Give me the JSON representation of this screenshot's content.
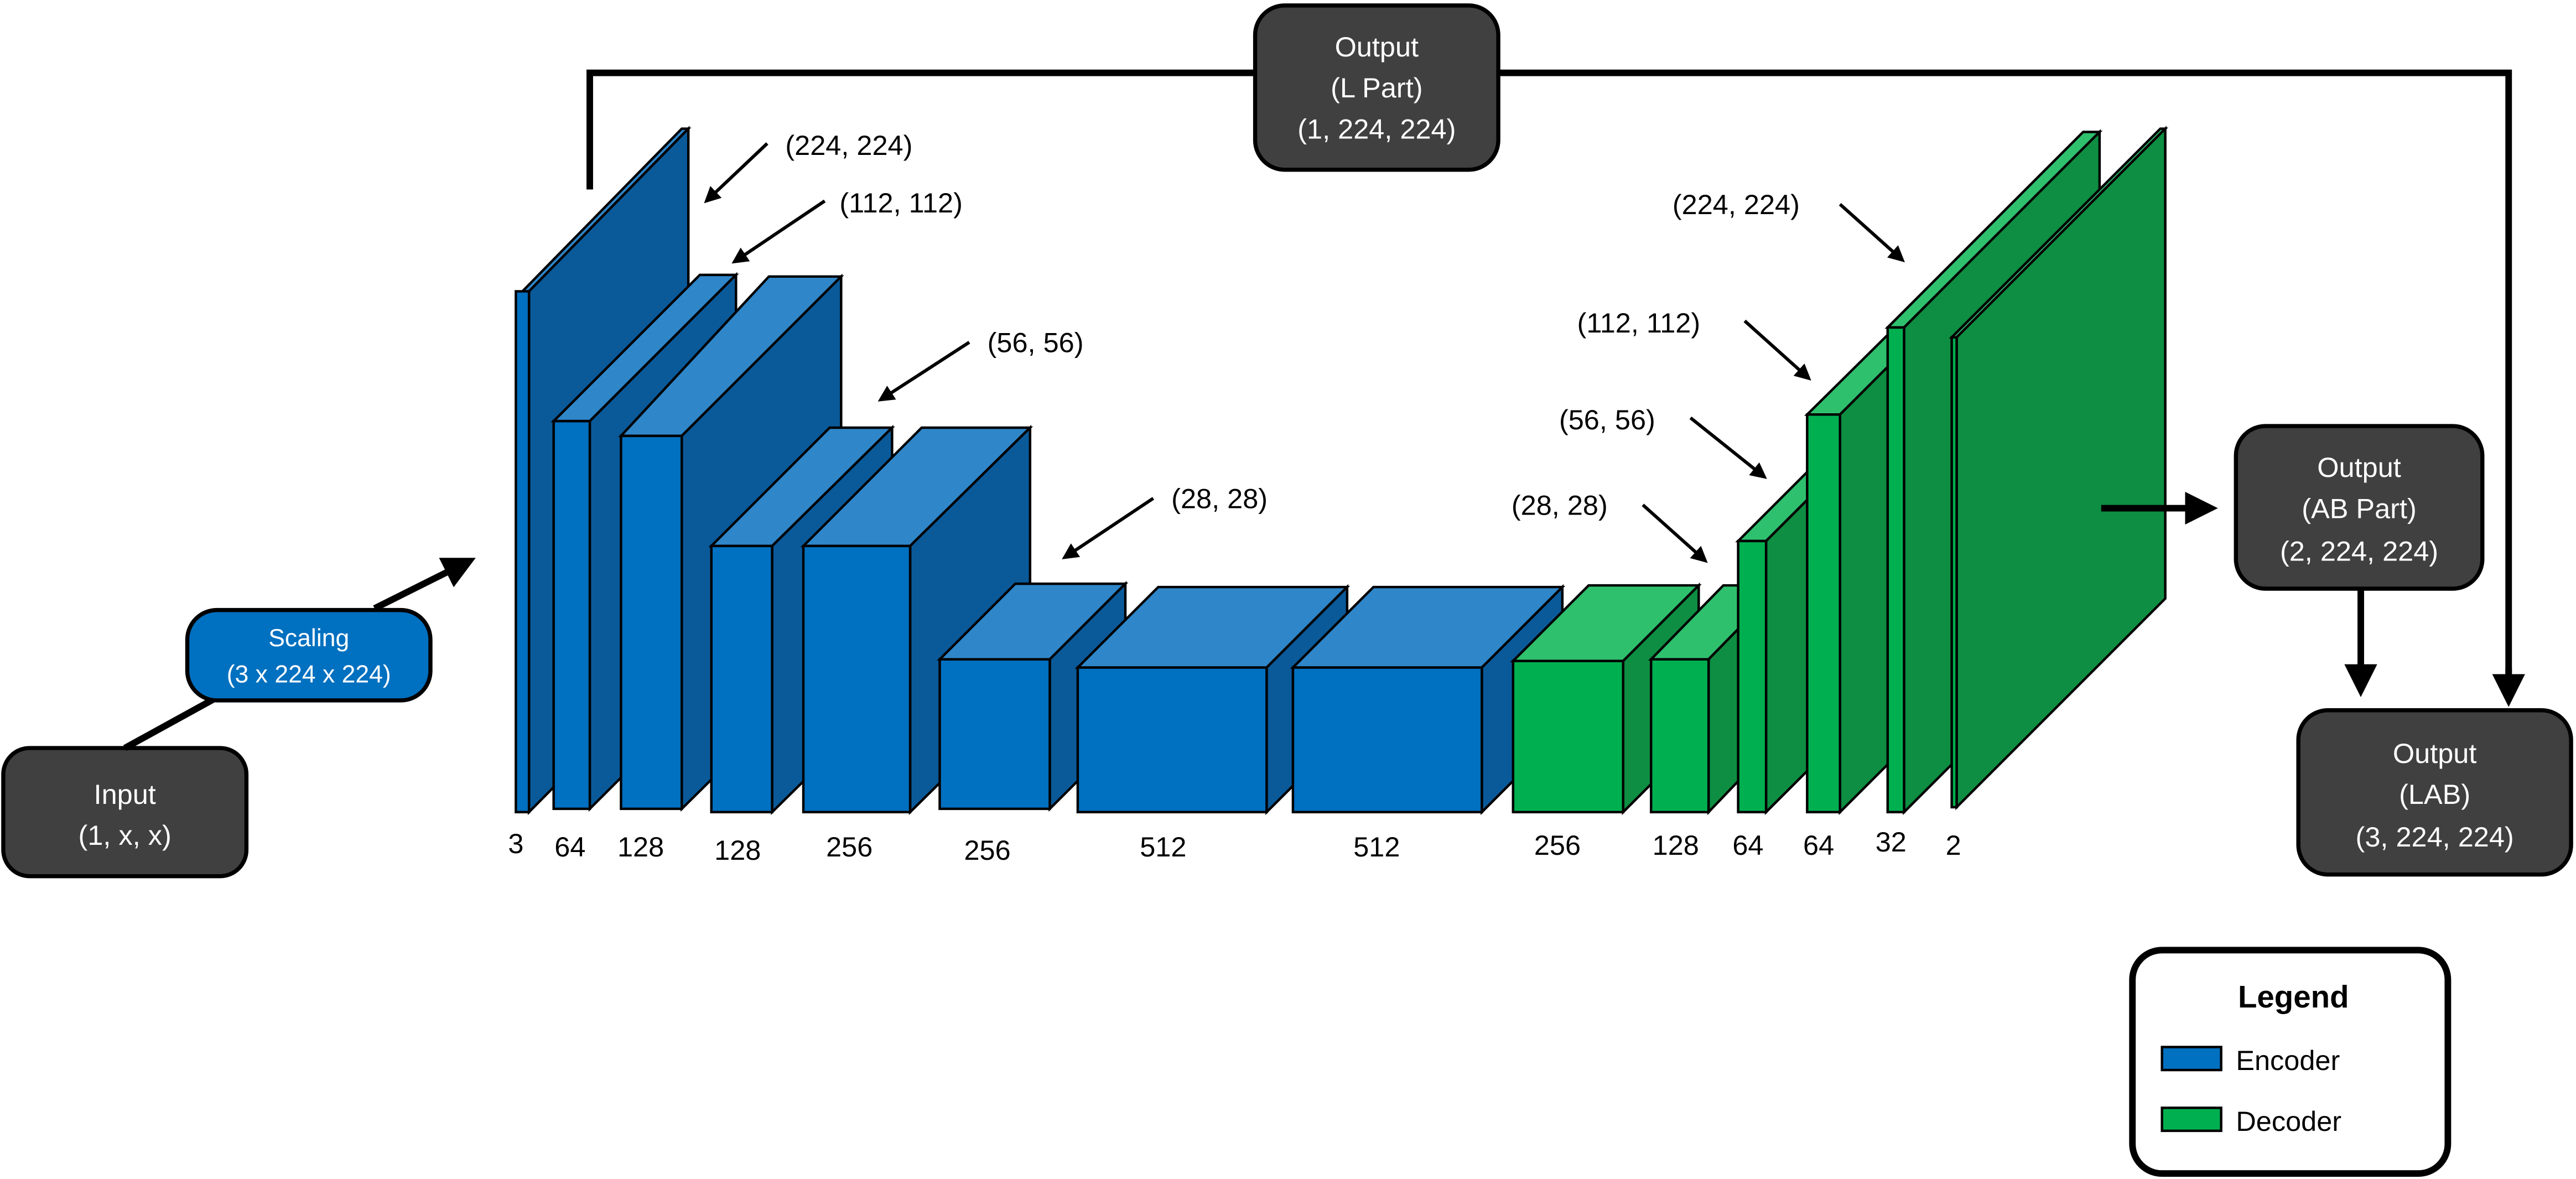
{
  "colors": {
    "encoder": "#0070C0",
    "encoder_light": "#2F86C9",
    "encoder_dark": "#0A5A9A",
    "decoder": "#00B050",
    "decoder_light": "#2FC06E",
    "decoder_dark": "#0E8E42",
    "box_dark": "#404040",
    "line": "#000000"
  },
  "input_box": {
    "line1": "Input",
    "line2": "(1, x, x)"
  },
  "scaling_box": {
    "line1": "Scaling",
    "line2": "(3 x 224 x 224)"
  },
  "output_l": {
    "line1": "Output",
    "line2": "(L Part)",
    "line3": "(1, 224, 224)"
  },
  "output_ab": {
    "line1": "Output",
    "line2": "(AB Part)",
    "line3": "(2, 224, 224)"
  },
  "output_lab": {
    "line1": "Output",
    "line2": "(LAB)",
    "line3": "(3, 224, 224)"
  },
  "legend": {
    "title": "Legend",
    "items": [
      {
        "label": "Encoder",
        "color": "#0070C0"
      },
      {
        "label": "Decoder",
        "color": "#00B050"
      }
    ]
  },
  "encoder_labels": {
    "spatial": [
      "(224, 224)",
      "(112, 112)",
      "(56, 56)",
      "(28, 28)"
    ],
    "channels": [
      "3",
      "64",
      "128",
      "128",
      "256",
      "256",
      "512",
      "512"
    ]
  },
  "decoder_labels": {
    "spatial": [
      "(224, 224)",
      "(112, 112)",
      "(56, 56)",
      "(28, 28)"
    ],
    "channels": [
      "256",
      "128",
      "64",
      "64",
      "32",
      "2"
    ]
  }
}
